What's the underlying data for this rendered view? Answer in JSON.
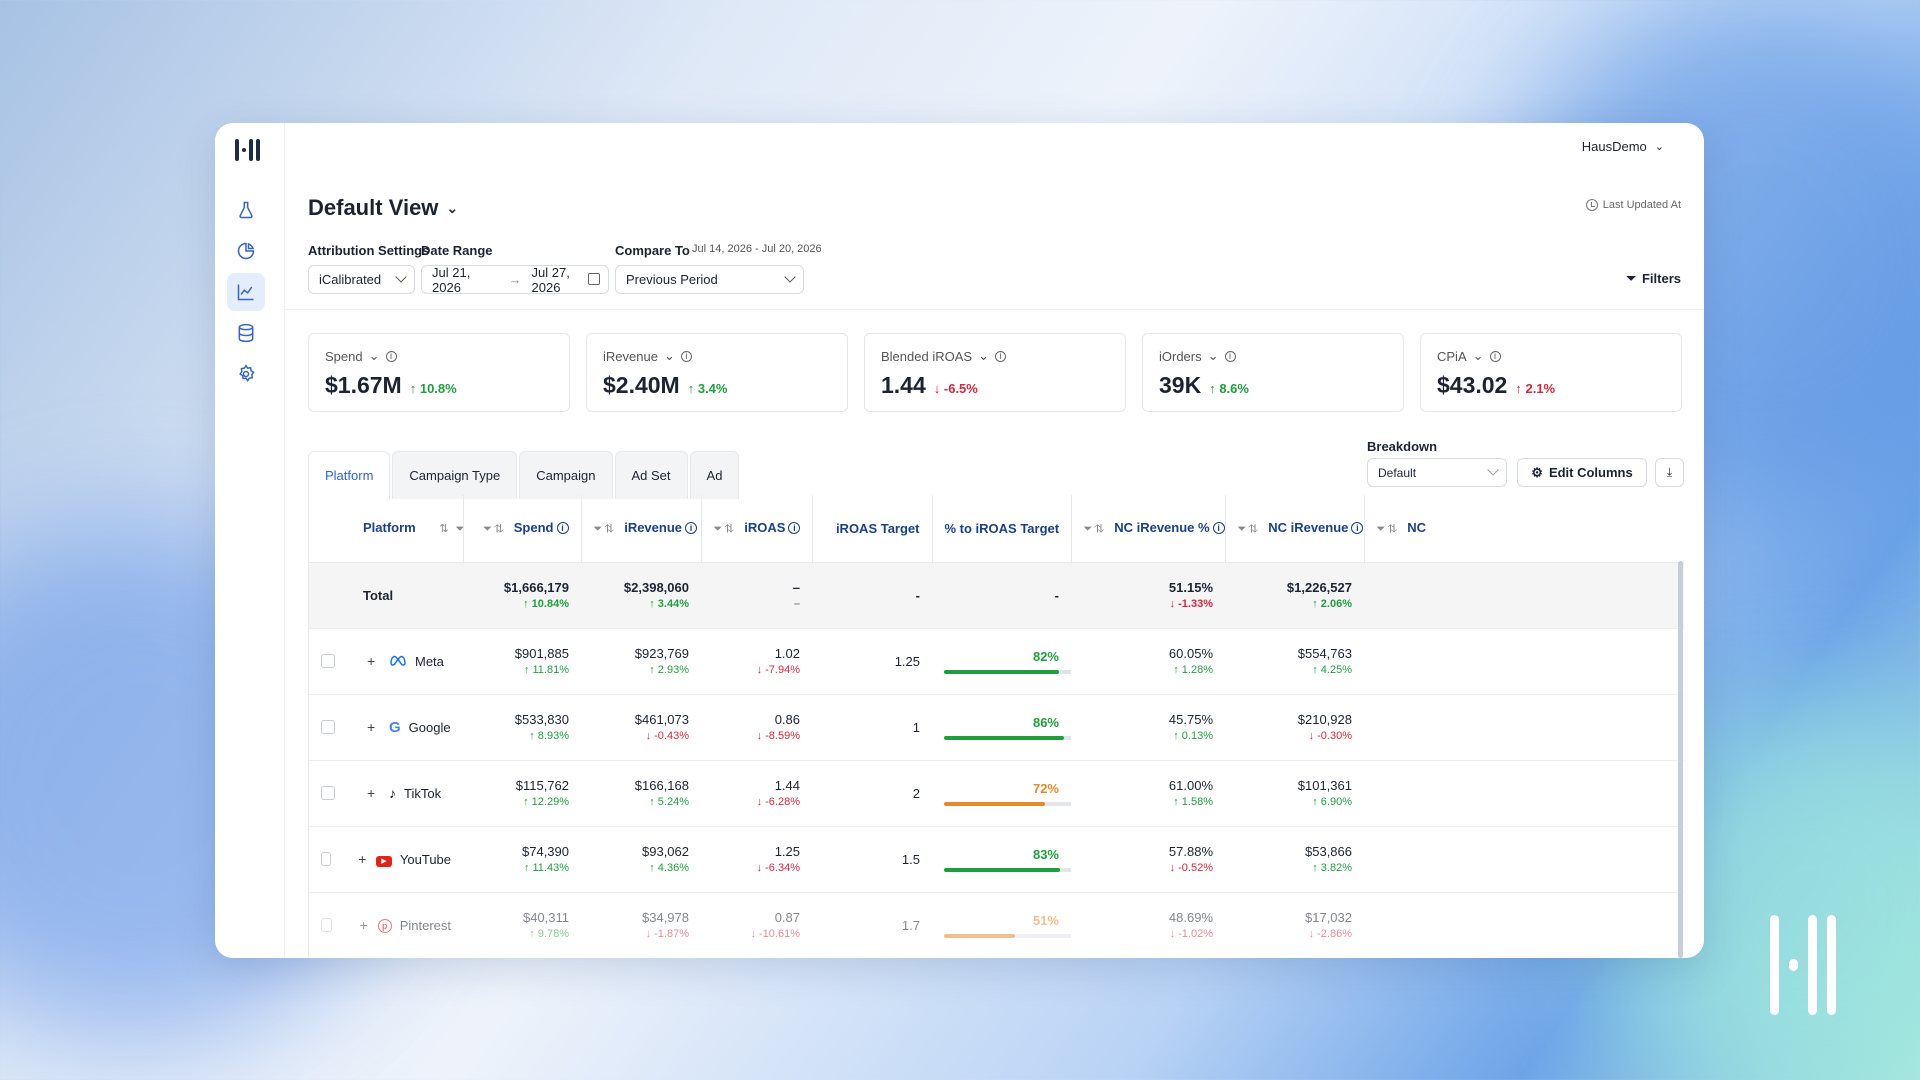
{
  "account": {
    "name": "HausDemo"
  },
  "page": {
    "title": "Default View",
    "last_updated": "Last Updated At"
  },
  "controls": {
    "attribution_label": "Attribution Settings",
    "attribution_value": "iCalibrated",
    "date_range_label": "Date Range",
    "date_start": "Jul 21, 2026",
    "date_end": "Jul 27, 2026",
    "compare_label": "Compare To",
    "compare_range": "Jul 14, 2026 - Jul 20, 2026",
    "compare_value": "Previous Period",
    "filters_label": "Filters"
  },
  "kpis": [
    {
      "label": "Spend",
      "value": "$1.67M",
      "delta": "10.8%",
      "dir": "up"
    },
    {
      "label": "iRevenue",
      "value": "$2.40M",
      "delta": "3.4%",
      "dir": "up"
    },
    {
      "label": "Blended iROAS",
      "value": "1.44",
      "delta": "-6.5%",
      "dir": "down"
    },
    {
      "label": "iOrders",
      "value": "39K",
      "delta": "8.6%",
      "dir": "up"
    },
    {
      "label": "CPiA",
      "value": "$43.02",
      "delta": "2.1%",
      "dir": "up-bad"
    }
  ],
  "tabs": [
    "Platform",
    "Campaign Type",
    "Campaign",
    "Ad Set",
    "Ad"
  ],
  "breakdown": {
    "label": "Breakdown",
    "value": "Default"
  },
  "edit_columns": "Edit Columns",
  "table": {
    "columns": [
      "Platform",
      "Spend",
      "iRevenue",
      "iROAS",
      "iROAS Target",
      "% to iROAS Target",
      "NC iRevenue %",
      "NC iRevenue",
      "NC"
    ],
    "total": {
      "label": "Total",
      "spend": "$1,666,179",
      "spend_d": "↑ 10.84%",
      "irev": "$2,398,060",
      "irev_d": "↑ 3.44%",
      "iroas": "–",
      "iroas_d": "–",
      "target": "-",
      "pct": "-",
      "ncpct": "51.15%",
      "ncpct_d": "↓ -1.33%",
      "ncrev": "$1,226,527",
      "ncrev_d": "↑ 2.06%"
    },
    "rows": [
      {
        "name": "Meta",
        "icon": "meta-icon",
        "spend": "$901,885",
        "spend_d": "↑ 11.81%",
        "irev": "$923,769",
        "irev_d": "↑ 2.93%",
        "iroas": "1.02",
        "iroas_d": "↓ -7.94%",
        "target": "1.25",
        "pct": "82%",
        "pct_val": 82,
        "pct_color": "#1f9e3e",
        "ncpct": "60.05%",
        "ncpct_d": "↑ 1.28%",
        "ncrev": "$554,763",
        "ncrev_d": "↑ 4.25%"
      },
      {
        "name": "Google",
        "icon": "google-icon",
        "spend": "$533,830",
        "spend_d": "↑ 8.93%",
        "irev": "$461,073",
        "irev_d": "↓ -0.43%",
        "iroas": "0.86",
        "iroas_d": "↓ -8.59%",
        "target": "1",
        "pct": "86%",
        "pct_val": 86,
        "pct_color": "#1f9e3e",
        "ncpct": "45.75%",
        "ncpct_d": "↑ 0.13%",
        "ncrev": "$210,928",
        "ncrev_d": "↓ -0.30%"
      },
      {
        "name": "TikTok",
        "icon": "tiktok-icon",
        "spend": "$115,762",
        "spend_d": "↑ 12.29%",
        "irev": "$166,168",
        "irev_d": "↑ 5.24%",
        "iroas": "1.44",
        "iroas_d": "↓ -6.28%",
        "target": "2",
        "pct": "72%",
        "pct_val": 72,
        "pct_color": "#e8892b",
        "ncpct": "61.00%",
        "ncpct_d": "↑ 1.58%",
        "ncrev": "$101,361",
        "ncrev_d": "↑ 6.90%"
      },
      {
        "name": "YouTube",
        "icon": "youtube-icon",
        "spend": "$74,390",
        "spend_d": "↑ 11.43%",
        "irev": "$93,062",
        "irev_d": "↑ 4.36%",
        "iroas": "1.25",
        "iroas_d": "↓ -6.34%",
        "target": "1.5",
        "pct": "83%",
        "pct_val": 83,
        "pct_color": "#1f9e3e",
        "ncpct": "57.88%",
        "ncpct_d": "↓ -0.52%",
        "ncrev": "$53,866",
        "ncrev_d": "↑ 3.82%"
      },
      {
        "name": "Pinterest",
        "icon": "pinterest-icon",
        "spend": "$40,311",
        "spend_d": "↑ 9.78%",
        "irev": "$34,978",
        "irev_d": "↓ -1.87%",
        "iroas": "0.87",
        "iroas_d": "↓ -10.61%",
        "target": "1.7",
        "pct": "51%",
        "pct_val": 51,
        "pct_color": "#e8892b",
        "ncpct": "48.69%",
        "ncpct_d": "↓ -1.02%",
        "ncrev": "$17,032",
        "ncrev_d": "↓ -2.86%"
      }
    ]
  },
  "colors": {
    "accent": "#2f63d1",
    "positive": "#1f9e3e",
    "negative": "#d9263a"
  }
}
